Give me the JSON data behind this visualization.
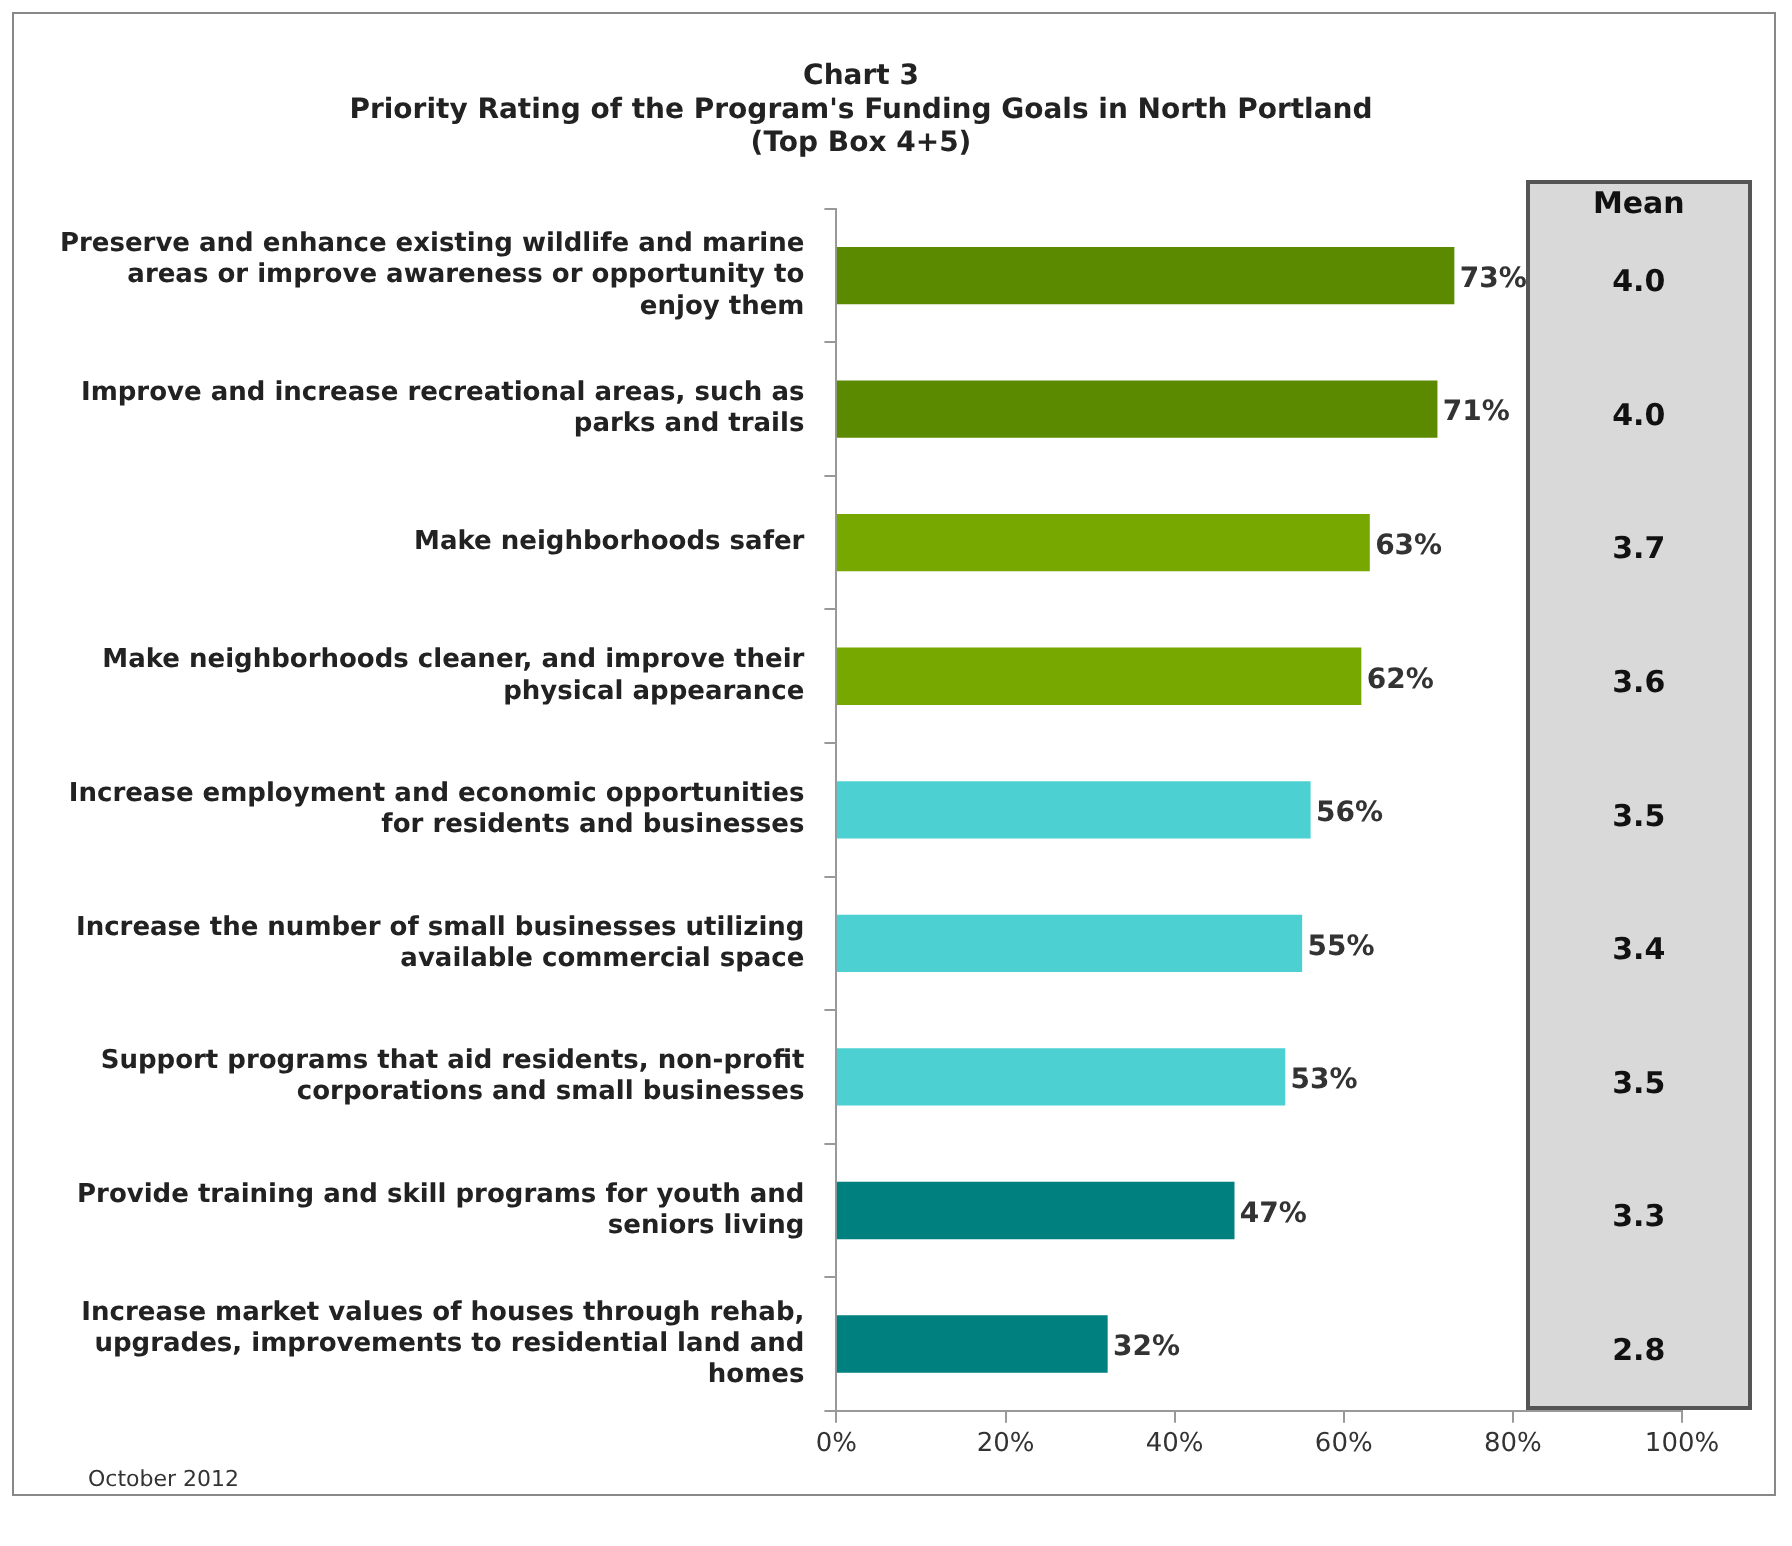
{
  "chart_data": {
    "type": "bar",
    "orientation": "horizontal",
    "title": "Chart 3",
    "subtitle": "Priority Rating of the Program's Funding Goals in North Portland\n(Top Box 4+5)",
    "categories": [
      "Preserve and enhance existing wildlife and marine areas or improve awareness or opportunity to enjoy them",
      "Improve and increase recreational areas, such as parks and trails",
      "Make neighborhoods safer",
      "Make neighborhoods cleaner, and improve their physical appearance",
      "Increase employment and economic opportunities for residents and businesses",
      "Increase the number of small businesses utilizing available commercial space",
      "Support programs that aid residents, non-profit corporations and small businesses",
      "Provide training and skill programs for youth and seniors living",
      "Increase market values of houses through rehab, upgrades, improvements to residential land and homes"
    ],
    "values": [
      73,
      71,
      63,
      62,
      56,
      55,
      53,
      47,
      32
    ],
    "colors": [
      "#5b8a00",
      "#5b8a00",
      "#76a800",
      "#76a800",
      "#4dd0d2",
      "#4dd0d2",
      "#4dd0d2",
      "#00807f",
      "#00807f"
    ],
    "value_labels": [
      "73%",
      "71%",
      "63%",
      "62%",
      "56%",
      "55%",
      "53%",
      "47%",
      "32%"
    ],
    "xlim": [
      0,
      100
    ],
    "xticks": [
      {
        "value": 0,
        "label": "0%"
      },
      {
        "value": 20,
        "label": "20%"
      },
      {
        "value": 40,
        "label": "40%"
      },
      {
        "value": 60,
        "label": "60%"
      },
      {
        "value": 80,
        "label": "80%"
      },
      {
        "value": 100,
        "label": "100%"
      }
    ],
    "grid": false,
    "legend": false,
    "annotations": [
      "Mean",
      "4.0",
      "4.0",
      "3.7",
      "3.6",
      "3.5",
      "3.4",
      "3.5",
      "3.3",
      "2.8",
      "October 2012"
    ]
  }
}
